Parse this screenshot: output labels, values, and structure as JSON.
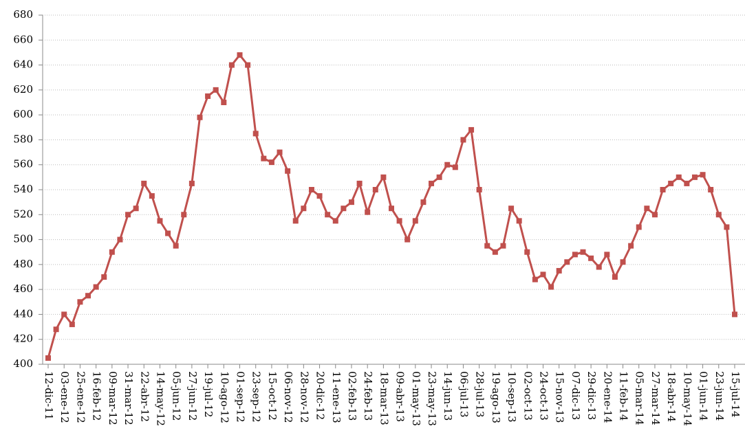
{
  "chart_data": {
    "type": "line",
    "x": [
      "12-dic-11",
      "23-dic-11",
      "03-ene-12",
      "14-ene-12",
      "25-ene-12",
      "05-feb-12",
      "16-feb-12",
      "27-feb-12",
      "09-mar-12",
      "20-mar-12",
      "31-mar-12",
      "11-abr-12",
      "22-abr-12",
      "03-may-12",
      "14-may-12",
      "25-may-12",
      "05-jun-12",
      "16-jun-12",
      "27-jun-12",
      "08-jul-12",
      "19-jul-12",
      "30-jul-12",
      "10-ago-12",
      "21-ago-12",
      "01-sep-12",
      "12-sep-12",
      "23-sep-12",
      "04-oct-12",
      "15-oct-12",
      "26-oct-12",
      "06-nov-12",
      "17-nov-12",
      "28-nov-12",
      "09-dic-12",
      "20-dic-12",
      "31-dic-12",
      "11-ene-13",
      "22-ene-13",
      "02-feb-13",
      "13-feb-13",
      "24-feb-13",
      "07-mar-13",
      "18-mar-13",
      "29-mar-13",
      "09-abr-13",
      "20-abr-13",
      "01-may-13",
      "12-may-13",
      "23-may-13",
      "03-jun-13",
      "14-jun-13",
      "25-jun-13",
      "06-jul-13",
      "17-jul-13",
      "28-jul-13",
      "08-ago-13",
      "19-ago-13",
      "30-ago-13",
      "10-sep-13",
      "21-sep-13",
      "02-oct-13",
      "13-oct-13",
      "24-oct-13",
      "04-nov-13",
      "15-nov-13",
      "26-nov-13",
      "07-dic-13",
      "18-dic-13",
      "29-dic-13",
      "09-ene-14",
      "20-ene-14",
      "31-ene-14",
      "11-feb-14",
      "22-feb-14",
      "05-mar-14",
      "16-mar-14",
      "27-mar-14",
      "07-abr-14",
      "18-abr-14",
      "29-abr-14",
      "10-may-14",
      "21-may-14",
      "01-jun-14",
      "12-jun-14",
      "23-jun-14",
      "04-jul-14",
      "15-jul-14"
    ],
    "series": [
      {
        "color": "#c0504d",
        "values": [
          405,
          428,
          440,
          432,
          450,
          455,
          462,
          470,
          490,
          500,
          520,
          525,
          545,
          535,
          515,
          505,
          495,
          520,
          545,
          598,
          615,
          620,
          610,
          640,
          648,
          640,
          585,
          565,
          562,
          570,
          555,
          515,
          525,
          540,
          535,
          520,
          515,
          525,
          530,
          545,
          522,
          540,
          550,
          525,
          515,
          500,
          515,
          530,
          545,
          550,
          560,
          558,
          580,
          588,
          540,
          495,
          490,
          495,
          525,
          515,
          490,
          468,
          472,
          462,
          475,
          482,
          488,
          490,
          485,
          478,
          488,
          470,
          482,
          495,
          510,
          525,
          520,
          540,
          545,
          550,
          545,
          550,
          552,
          540,
          520,
          510,
          440
        ]
      }
    ],
    "xlim": [
      "12-dic-11",
      "15-jul-14"
    ],
    "xticks": [
      "12-dic-11",
      "03-ene-12",
      "25-ene-12",
      "16-feb-12",
      "09-mar-12",
      "31-mar-12",
      "22-abr-12",
      "14-may-12",
      "05-jun-12",
      "27-jun-12",
      "19-jul-12",
      "10-ago-12",
      "01-sep-12",
      "23-sep-12",
      "15-oct-12",
      "06-nov-12",
      "28-nov-12",
      "20-dic-12",
      "11-ene-13",
      "02-feb-13",
      "24-feb-13",
      "18-mar-13",
      "09-abr-13",
      "01-may-13",
      "23-may-13",
      "14-jun-13",
      "06-jul-13",
      "28-jul-13",
      "19-ago-13",
      "10-sep-13",
      "02-oct-13",
      "24-oct-13",
      "15-nov-13",
      "07-dic-13",
      "29-dic-13",
      "20-ene-14",
      "11-feb-14",
      "05-mar-14",
      "27-mar-14",
      "18-abr-14",
      "10-may-14",
      "01-jun-14",
      "23-jun-14",
      "15-jul-14"
    ],
    "ylim": [
      400,
      680
    ],
    "yticks": [
      400,
      420,
      440,
      460,
      480,
      500,
      520,
      540,
      560,
      580,
      600,
      620,
      640,
      660,
      680
    ],
    "grid": true
  }
}
